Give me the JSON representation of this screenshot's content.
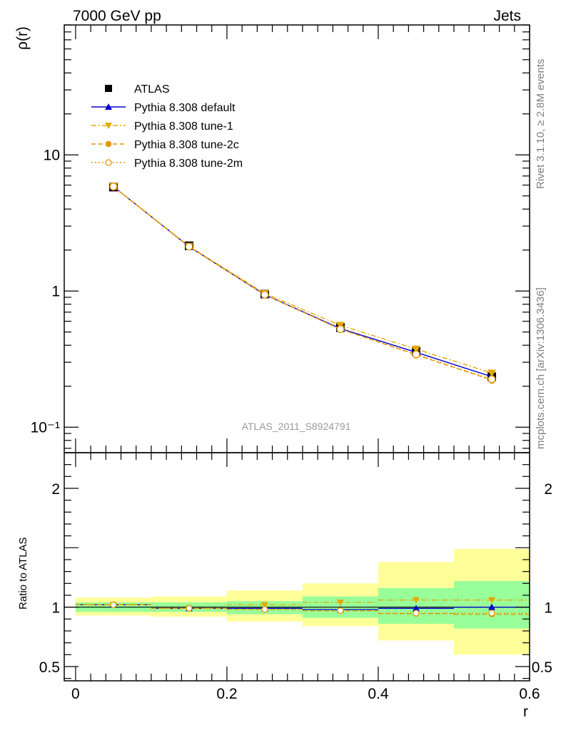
{
  "header": {
    "left": "7000 GeV pp",
    "right": "Jets"
  },
  "side_labels": {
    "top": "Rivet 3.1.10, ≥ 2.8M events",
    "bottom": "mcplots.cern.ch [arXiv:1306.3436]"
  },
  "watermark": "ATLAS_2011_S8924791",
  "axes": {
    "main_ylabel": "ρ(r)",
    "ratio_ylabel": "Ratio to ATLAS",
    "xlabel": "r",
    "main_ticks": [
      {
        "v": 10,
        "label": "10"
      },
      {
        "v": 1,
        "label": "1"
      },
      {
        "v": 0.1,
        "label": "10⁻¹"
      }
    ],
    "ratio_ticks": [
      {
        "v": 2,
        "label": "2"
      },
      {
        "v": 1,
        "label": "1"
      },
      {
        "v": 0.5,
        "label": "0.5"
      }
    ],
    "x_ticks": [
      {
        "v": 0,
        "label": "0"
      },
      {
        "v": 0.2,
        "label": "0.2"
      },
      {
        "v": 0.4,
        "label": "0.4"
      },
      {
        "v": 0.6,
        "label": "0.6"
      }
    ]
  },
  "legend": [
    {
      "label": "ATLAS"
    },
    {
      "label": "Pythia 8.308 default"
    },
    {
      "label": "Pythia 8.308 tune-1"
    },
    {
      "label": "Pythia 8.308 tune-2c"
    },
    {
      "label": "Pythia 8.308 tune-2m"
    }
  ],
  "chart_data": [
    {
      "type": "line",
      "ylabel": "ρ(r)",
      "yscale": "log",
      "xlim": [
        -0.015,
        0.6
      ],
      "ylim": [
        0.065,
        90
      ],
      "x": [
        0.05,
        0.15,
        0.25,
        0.35,
        0.45,
        0.55
      ],
      "x_bins": [
        [
          0.0,
          0.1
        ],
        [
          0.1,
          0.2
        ],
        [
          0.2,
          0.3
        ],
        [
          0.3,
          0.4
        ],
        [
          0.4,
          0.5
        ],
        [
          0.5,
          0.6
        ]
      ],
      "series": [
        {
          "name": "ATLAS",
          "marker": "square",
          "color": "#000000",
          "values": [
            5.8,
            2.15,
            0.95,
            0.54,
            0.36,
            0.235
          ]
        },
        {
          "name": "Pythia 8.308 default",
          "marker": "triangle-up",
          "line": "solid",
          "color": "#0000cc",
          "values": [
            5.85,
            2.12,
            0.94,
            0.53,
            0.355,
            0.235
          ]
        },
        {
          "name": "Pythia 8.308 tune-1",
          "marker": "triangle-down",
          "line": "dash-dot",
          "color": "#e6a800",
          "values": [
            5.85,
            2.13,
            0.96,
            0.56,
            0.375,
            0.25
          ]
        },
        {
          "name": "Pythia 8.308 tune-2c",
          "marker": "circle",
          "line": "dashed",
          "color": "#e69500",
          "values": [
            5.85,
            2.12,
            0.94,
            0.525,
            0.34,
            0.222
          ]
        },
        {
          "name": "Pythia 8.308 tune-2m",
          "marker": "open-circle",
          "line": "dotted",
          "color": "#e69500",
          "values": [
            5.85,
            2.12,
            0.94,
            0.525,
            0.343,
            0.225
          ]
        }
      ]
    },
    {
      "type": "line",
      "ylabel": "Ratio to ATLAS",
      "xlabel": "r",
      "ylim": [
        0.38,
        2.3
      ],
      "xlim": [
        -0.015,
        0.6
      ],
      "bands": {
        "green_color": "#99ff99",
        "yellow_color": "#ffff99",
        "bins": [
          {
            "x0": 0.0,
            "x1": 0.1,
            "green": [
              0.96,
              1.04
            ],
            "yellow": [
              0.93,
              1.08
            ]
          },
          {
            "x0": 0.1,
            "x1": 0.2,
            "green": [
              0.96,
              1.04
            ],
            "yellow": [
              0.92,
              1.09
            ]
          },
          {
            "x0": 0.2,
            "x1": 0.3,
            "green": [
              0.94,
              1.05
            ],
            "yellow": [
              0.88,
              1.14
            ]
          },
          {
            "x0": 0.3,
            "x1": 0.4,
            "green": [
              0.91,
              1.09
            ],
            "yellow": [
              0.84,
              1.2
            ]
          },
          {
            "x0": 0.4,
            "x1": 0.5,
            "green": [
              0.86,
              1.16
            ],
            "yellow": [
              0.72,
              1.38
            ]
          },
          {
            "x0": 0.5,
            "x1": 0.6,
            "green": [
              0.82,
              1.22
            ],
            "yellow": [
              0.6,
              1.49
            ]
          }
        ]
      },
      "x": [
        0.05,
        0.15,
        0.25,
        0.35,
        0.45,
        0.55
      ],
      "series": [
        {
          "name": "Pythia 8.308 default",
          "marker": "triangle-up",
          "line": "solid",
          "color": "#0000cc",
          "values": [
            1.02,
            0.99,
            0.99,
            0.98,
            0.99,
            1.0
          ]
        },
        {
          "name": "Pythia 8.308 tune-1",
          "marker": "triangle-down",
          "line": "dash-dot",
          "color": "#e6a800",
          "values": [
            1.02,
            0.99,
            1.02,
            1.04,
            1.06,
            1.06
          ]
        },
        {
          "name": "Pythia 8.308 tune-2c",
          "marker": "circle",
          "line": "dashed",
          "color": "#e69500",
          "values": [
            1.02,
            0.99,
            0.98,
            0.97,
            0.945,
            0.94
          ]
        },
        {
          "name": "Pythia 8.308 tune-2m",
          "marker": "open-circle",
          "line": "dotted",
          "color": "#e69500",
          "values": [
            1.02,
            0.99,
            0.98,
            0.97,
            0.95,
            0.95
          ]
        }
      ]
    }
  ]
}
